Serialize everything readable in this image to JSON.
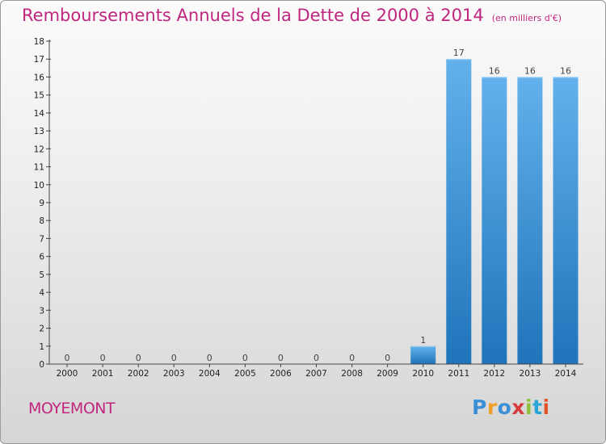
{
  "title": "Remboursements Annuels de la Dette de 2000 à 2014",
  "unit_note": "(en milliers d'€)",
  "commune": "MOYEMONT",
  "brand": {
    "text": "Proxiti",
    "letter_colors": [
      "#3a8fd6",
      "#f0a02a",
      "#3a8fd6",
      "#d63a3a",
      "#8fc23a",
      "#2aa6d6",
      "#e0562a"
    ]
  },
  "colors": {
    "title": "#c0267e",
    "bar_light": "#62b1ec",
    "bar_dark": "#1f74ba",
    "axis": "#444444",
    "value_label": "#444444"
  },
  "chart_data": {
    "type": "bar",
    "title": "Remboursements Annuels de la Dette de 2000 à 2014",
    "subtitle": "(en milliers d'€)",
    "xlabel": "",
    "ylabel": "",
    "categories": [
      "2000",
      "2001",
      "2002",
      "2003",
      "2004",
      "2005",
      "2006",
      "2007",
      "2008",
      "2009",
      "2010",
      "2011",
      "2012",
      "2013",
      "2014"
    ],
    "values": [
      0,
      0,
      0,
      0,
      0,
      0,
      0,
      0,
      0,
      0,
      1,
      17,
      16,
      16,
      16
    ],
    "data_labels": [
      "0",
      "0",
      "0",
      "0",
      "0",
      "0",
      "0",
      "0",
      "0",
      "0",
      "1",
      "17",
      "16",
      "16",
      "16"
    ],
    "ylim": [
      0,
      18
    ],
    "yticks": [
      0,
      1,
      2,
      3,
      4,
      5,
      6,
      7,
      8,
      9,
      10,
      11,
      12,
      13,
      14,
      15,
      16,
      17,
      18
    ],
    "grid": false,
    "legend": "none"
  }
}
